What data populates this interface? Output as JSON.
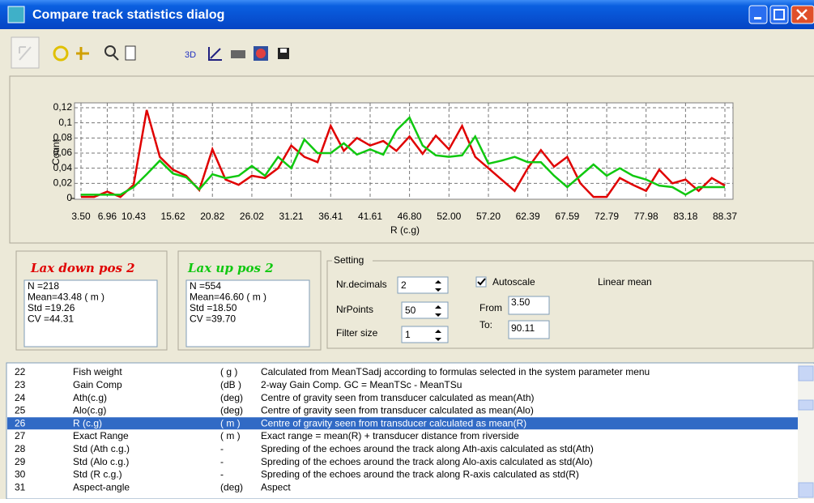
{
  "window": {
    "title": "Compare track statistics dialog"
  },
  "toolbar": {
    "label": "3D"
  },
  "chart_data": {
    "type": "line",
    "xlabel": "R (c.g)",
    "ylabel": "Count",
    "x": [
      3.5,
      5.23,
      6.96,
      8.7,
      10.43,
      12.16,
      13.89,
      15.62,
      17.36,
      19.09,
      20.82,
      22.55,
      24.28,
      26.02,
      27.75,
      29.48,
      31.21,
      32.94,
      34.68,
      36.41,
      38.14,
      39.87,
      41.61,
      43.34,
      45.07,
      46.8,
      48.53,
      50.27,
      52.0,
      53.73,
      55.46,
      57.2,
      58.93,
      60.66,
      62.39,
      64.12,
      65.86,
      67.59,
      69.32,
      71.05,
      72.79,
      74.52,
      76.25,
      77.98,
      79.71,
      81.45,
      83.18,
      84.91,
      86.64,
      88.37
    ],
    "series": [
      {
        "name": "Lax down pos 2",
        "color": "#e00000",
        "values": [
          0.002,
          0.002,
          0.009,
          0.002,
          0.018,
          0.117,
          0.055,
          0.038,
          0.03,
          0.011,
          0.065,
          0.025,
          0.018,
          0.03,
          0.027,
          0.04,
          0.07,
          0.055,
          0.048,
          0.096,
          0.063,
          0.08,
          0.07,
          0.076,
          0.063,
          0.082,
          0.059,
          0.083,
          0.065,
          0.096,
          0.055,
          0.04,
          0.025,
          0.01,
          0.04,
          0.064,
          0.042,
          0.055,
          0.02,
          0.002,
          0.002,
          0.027,
          0.018,
          0.01,
          0.038,
          0.02,
          0.025,
          0.01,
          0.027,
          0.017
        ]
      },
      {
        "name": "Lax up pos 2",
        "color": "#10c810",
        "values": [
          0.005,
          0.005,
          0.005,
          0.005,
          0.015,
          0.032,
          0.05,
          0.033,
          0.028,
          0.012,
          0.032,
          0.027,
          0.03,
          0.043,
          0.03,
          0.055,
          0.04,
          0.078,
          0.06,
          0.06,
          0.073,
          0.058,
          0.065,
          0.058,
          0.09,
          0.107,
          0.07,
          0.057,
          0.055,
          0.057,
          0.082,
          0.046,
          0.05,
          0.055,
          0.048,
          0.048,
          0.03,
          0.015,
          0.03,
          0.045,
          0.03,
          0.04,
          0.03,
          0.025,
          0.017,
          0.015,
          0.005,
          0.015,
          0.015,
          0.015
        ]
      }
    ],
    "xlim": [
      3.5,
      88.37
    ],
    "xticks": [
      {
        "value": 3.5,
        "label": "3.50"
      },
      6.96,
      10.43,
      15.62,
      20.82,
      26.02,
      31.21,
      36.41,
      41.61,
      {
        "value": 46.8,
        "label": "46.80"
      },
      {
        "value": 52.0,
        "label": "52.00"
      },
      {
        "value": 57.2,
        "label": "57.20"
      },
      62.39,
      67.59,
      72.79,
      77.98,
      83.18,
      88.37
    ],
    "ylim": [
      0,
      0.12
    ],
    "yticks": [
      {
        "value": 0,
        "label": "0"
      },
      {
        "value": 0.02,
        "label": "0,02"
      },
      {
        "value": 0.04,
        "label": "0,04"
      },
      {
        "value": 0.06,
        "label": "0,06"
      },
      {
        "value": 0.08,
        "label": "0,08"
      },
      {
        "value": 0.1,
        "label": "0,1"
      },
      {
        "value": 0.12,
        "label": "0,12"
      }
    ],
    "grid": true
  },
  "stats": [
    {
      "lines": [
        "N =218",
        "Mean=43.48  ( m )",
        "Std =19.26",
        "CV =44.31"
      ]
    },
    {
      "lines": [
        "N =554",
        "Mean=46.60  ( m )",
        "Std =18.50",
        "CV =39.70"
      ]
    }
  ],
  "settings": {
    "title": "Setting",
    "nr_decimals": {
      "label": "Nr.decimals",
      "value": "2"
    },
    "nr_points": {
      "label": "NrPoints",
      "value": "50"
    },
    "filter_size": {
      "label": "Filter size",
      "value": "1"
    },
    "autoscale": {
      "label": "Autoscale",
      "checked": true
    },
    "mean_type": "Linear mean",
    "from": {
      "label": "From",
      "value": "3.50"
    },
    "to": {
      "label": "To:",
      "value": "90.11"
    }
  },
  "list": {
    "selected": 4,
    "rows": [
      [
        "22",
        "Fish weight",
        "( g )",
        "Calculated from MeanTSadj according to formulas selected in the system parameter menu"
      ],
      [
        "23",
        "Gain Comp",
        "(dB )",
        "2-way Gain Comp. GC = MeanTSc - MeanTSu"
      ],
      [
        "24",
        "Ath(c.g)",
        "(deg)",
        "Centre of gravity seen from transducer calculated as mean(Ath)"
      ],
      [
        "25",
        "Alo(c.g)",
        "(deg)",
        "Centre of gravity seen from transducer calculated as mean(Alo)"
      ],
      [
        "26",
        "R (c.g)",
        "( m )",
        "Centre of gravity seen from transducer calculated as mean(R)"
      ],
      [
        "27",
        "Exact Range",
        "( m )",
        "Exact range = mean(R) + transducer distance from riverside"
      ],
      [
        "28",
        "Std (Ath c.g.)",
        "-",
        "Spreding of the echoes around the track along Ath-axis calculated as std(Ath)"
      ],
      [
        "29",
        "Std (Alo c.g.)",
        "-",
        "Spreding of the echoes around the track along Alo-axis calculated as std(Alo)"
      ],
      [
        "30",
        "Std (R  c.g.)",
        "-",
        "Spreding of the echoes around the track along R-axis calculated as std(R)"
      ],
      [
        "31",
        "Aspect-angle",
        "(deg)",
        "Aspect"
      ]
    ]
  }
}
